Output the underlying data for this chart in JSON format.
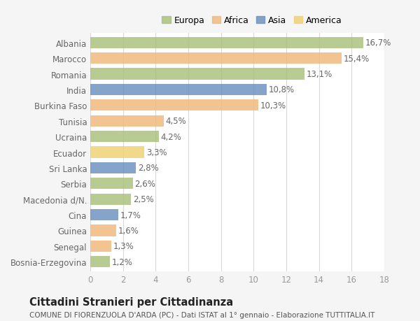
{
  "countries": [
    "Albania",
    "Marocco",
    "Romania",
    "India",
    "Burkina Faso",
    "Tunisia",
    "Ucraina",
    "Ecuador",
    "Sri Lanka",
    "Serbia",
    "Macedonia d/N.",
    "Cina",
    "Guinea",
    "Senegal",
    "Bosnia-Erzegovina"
  ],
  "values": [
    16.7,
    15.4,
    13.1,
    10.8,
    10.3,
    4.5,
    4.2,
    3.3,
    2.8,
    2.6,
    2.5,
    1.7,
    1.6,
    1.3,
    1.2
  ],
  "labels": [
    "16,7%",
    "15,4%",
    "13,1%",
    "10,8%",
    "10,3%",
    "4,5%",
    "4,2%",
    "3,3%",
    "2,8%",
    "2,6%",
    "2,5%",
    "1,7%",
    "1,6%",
    "1,3%",
    "1,2%"
  ],
  "continents": [
    "Europa",
    "Africa",
    "Europa",
    "Asia",
    "Africa",
    "Africa",
    "Europa",
    "America",
    "Asia",
    "Europa",
    "Europa",
    "Asia",
    "Africa",
    "Africa",
    "Europa"
  ],
  "continent_colors": {
    "Europa": "#a8c07a",
    "Africa": "#f0b87a",
    "Asia": "#6b8fbd",
    "America": "#f0d070"
  },
  "legend_order": [
    "Europa",
    "Africa",
    "Asia",
    "America"
  ],
  "xlim": [
    0,
    18
  ],
  "xticks": [
    0,
    2,
    4,
    6,
    8,
    10,
    12,
    14,
    16,
    18
  ],
  "title": "Cittadini Stranieri per Cittadinanza",
  "subtitle": "COMUNE DI FIORENZUOLA D'ARDA (PC) - Dati ISTAT al 1° gennaio - Elaborazione TUTTITALIA.IT",
  "background_color": "#f5f5f5",
  "plot_background": "#ffffff",
  "grid_color": "#d8d8d8",
  "bar_height": 0.72,
  "label_fontsize": 8.5,
  "tick_fontsize": 8.5,
  "title_fontsize": 10.5,
  "subtitle_fontsize": 7.5
}
